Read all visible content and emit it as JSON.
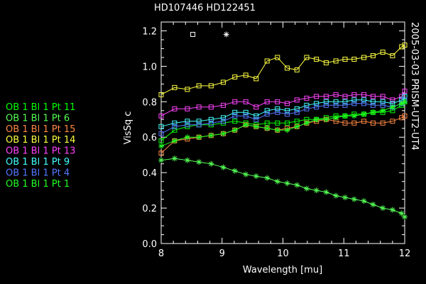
{
  "chart_data": {
    "type": "line",
    "title": "HD107446 HD122451",
    "xlabel": "Wavelength [mu]",
    "ylabel": "VisSq c",
    "side_label": "2005-03-03 PRISM-UT2-UT4",
    "xlim": [
      8,
      12
    ],
    "ylim": [
      0,
      1.25
    ],
    "xticks": [
      8,
      9,
      10,
      11,
      12
    ],
    "yticks": [
      0.0,
      0.2,
      0.4,
      0.6,
      0.8,
      1.0,
      1.2
    ],
    "ytick_labels": [
      "0.0",
      "0.2",
      "0.4",
      "0.6",
      "0.8",
      "1.0",
      "1.2"
    ],
    "grid": false,
    "legend_position": "left",
    "x": [
      8.0,
      8.22,
      8.43,
      8.62,
      8.82,
      9.02,
      9.21,
      9.39,
      9.56,
      9.74,
      9.91,
      10.07,
      10.23,
      10.39,
      10.55,
      10.71,
      10.87,
      11.02,
      11.17,
      11.33,
      11.48,
      11.64,
      11.8,
      11.95,
      12.0
    ],
    "top_markers": [
      {
        "symbol": "square",
        "x": 8.52,
        "y": 1.18
      },
      {
        "symbol": "asterisk",
        "x": 9.07,
        "y": 1.18
      }
    ],
    "series": [
      {
        "name": "OB 1 Bl 1 Pt 11",
        "color": "#00ff00",
        "marker": "square",
        "values": [
          0.58,
          0.64,
          0.66,
          0.67,
          0.67,
          0.68,
          0.69,
          0.68,
          0.67,
          0.68,
          0.68,
          0.68,
          0.69,
          0.7,
          0.7,
          0.71,
          0.72,
          0.72,
          0.73,
          0.73,
          0.74,
          0.74,
          0.75,
          0.78,
          0.8
        ]
      },
      {
        "name": "OB 1 Bl 1 Pt 6",
        "color": "#55ff55",
        "marker": "asterisk",
        "values": [
          0.47,
          0.48,
          0.47,
          0.46,
          0.45,
          0.43,
          0.41,
          0.39,
          0.38,
          0.37,
          0.35,
          0.34,
          0.33,
          0.31,
          0.3,
          0.29,
          0.27,
          0.26,
          0.25,
          0.24,
          0.22,
          0.2,
          0.19,
          0.17,
          0.15
        ]
      },
      {
        "name": "OB 1 Bl 1 Pt 15",
        "color": "#ff8844",
        "marker": "square",
        "values": [
          0.51,
          0.58,
          0.59,
          0.6,
          0.61,
          0.62,
          0.64,
          0.67,
          0.66,
          0.65,
          0.64,
          0.65,
          0.66,
          0.68,
          0.69,
          0.7,
          0.69,
          0.68,
          0.68,
          0.69,
          0.68,
          0.68,
          0.69,
          0.71,
          0.72
        ]
      },
      {
        "name": "OB 1 Bl 1 Pt 14",
        "color": "#ffff44",
        "marker": "square",
        "values": [
          0.84,
          0.88,
          0.87,
          0.89,
          0.89,
          0.91,
          0.94,
          0.95,
          0.93,
          1.03,
          1.05,
          0.99,
          0.98,
          1.05,
          1.04,
          1.02,
          1.03,
          1.04,
          1.04,
          1.05,
          1.06,
          1.08,
          1.06,
          1.11,
          1.12
        ]
      },
      {
        "name": "OB 1 Bl 1 Pt 13",
        "color": "#ff44ff",
        "marker": "square",
        "values": [
          0.72,
          0.76,
          0.76,
          0.77,
          0.77,
          0.78,
          0.8,
          0.8,
          0.77,
          0.8,
          0.8,
          0.79,
          0.81,
          0.82,
          0.83,
          0.83,
          0.84,
          0.83,
          0.84,
          0.84,
          0.83,
          0.83,
          0.81,
          0.83,
          0.86
        ]
      },
      {
        "name": "OB 1 Bl 1 Pt 9",
        "color": "#44ffff",
        "marker": "square",
        "values": [
          0.66,
          0.68,
          0.69,
          0.69,
          0.7,
          0.71,
          0.74,
          0.74,
          0.72,
          0.75,
          0.76,
          0.75,
          0.76,
          0.78,
          0.79,
          0.8,
          0.8,
          0.8,
          0.81,
          0.81,
          0.8,
          0.8,
          0.79,
          0.81,
          0.83
        ]
      },
      {
        "name": "OB 1 Bl 1 Pt 4",
        "color": "#5577ff",
        "marker": "square",
        "values": [
          0.62,
          0.66,
          0.67,
          0.67,
          0.68,
          0.69,
          0.72,
          0.72,
          0.7,
          0.73,
          0.74,
          0.73,
          0.74,
          0.76,
          0.77,
          0.78,
          0.78,
          0.78,
          0.79,
          0.79,
          0.78,
          0.78,
          0.77,
          0.79,
          0.81
        ]
      },
      {
        "name": "OB 1 Bl 1 Pt 1",
        "color": "#22ff22",
        "marker": "asterisk",
        "values": [
          0.55,
          0.58,
          0.6,
          0.6,
          0.61,
          0.62,
          0.64,
          0.67,
          0.66,
          0.65,
          0.64,
          0.64,
          0.66,
          0.68,
          0.7,
          0.7,
          0.71,
          0.72,
          0.72,
          0.73,
          0.74,
          0.75,
          0.77,
          0.79,
          0.8
        ]
      }
    ]
  }
}
